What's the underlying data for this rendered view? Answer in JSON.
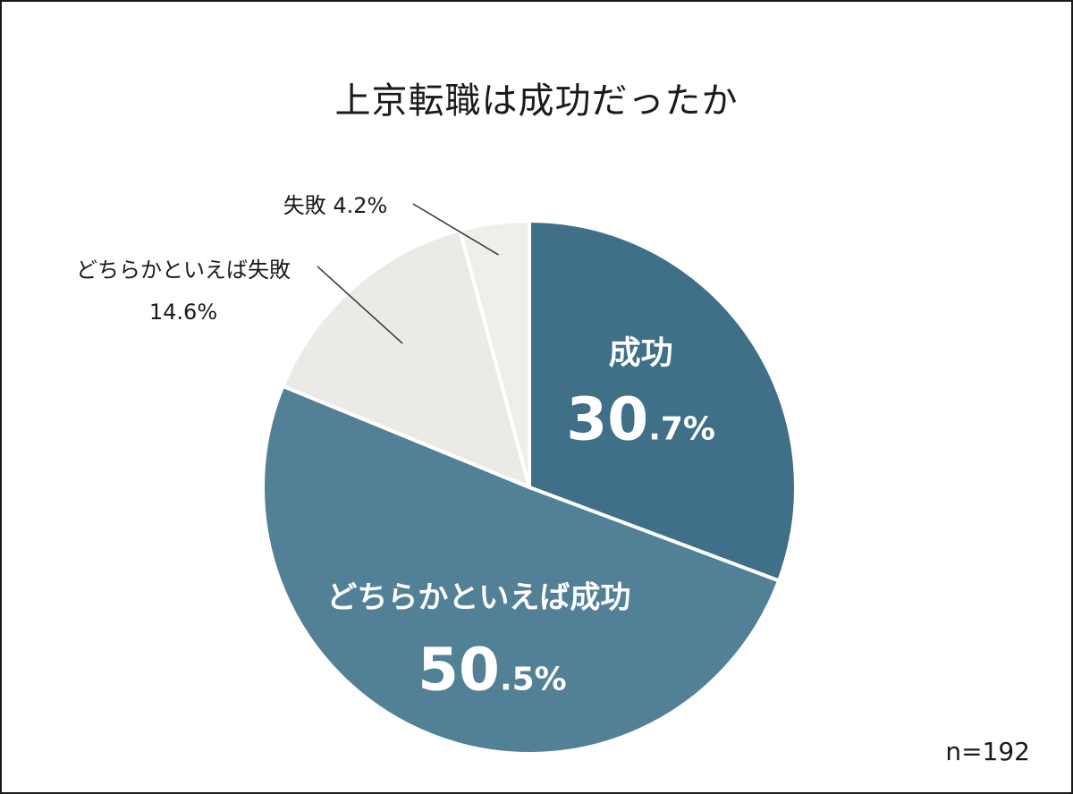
{
  "title": "上京転職は成功だったか",
  "sample_note": "n=192",
  "chart_data": {
    "type": "pie",
    "title": "上京転職は成功だったか",
    "slices": [
      {
        "label": "成功",
        "value": 30.7,
        "display_main": "30",
        "display_decimal": ".7%",
        "color": "#3f7087",
        "text_color": "#ffffff"
      },
      {
        "label": "どちらかといえば成功",
        "value": 50.5,
        "display_main": "50",
        "display_decimal": ".5%",
        "color": "#528096",
        "text_color": "#ffffff"
      },
      {
        "label": "どちらかといえば失敗",
        "value": 14.6,
        "display_pct": "14.6%",
        "color": "#ebeae6",
        "text_color": "#1a1a1a"
      },
      {
        "label": "失敗",
        "value": 4.2,
        "display_pct": "4.2%",
        "color": "#efeeea",
        "text_color": "#1a1a1a"
      }
    ],
    "legend": "none"
  }
}
